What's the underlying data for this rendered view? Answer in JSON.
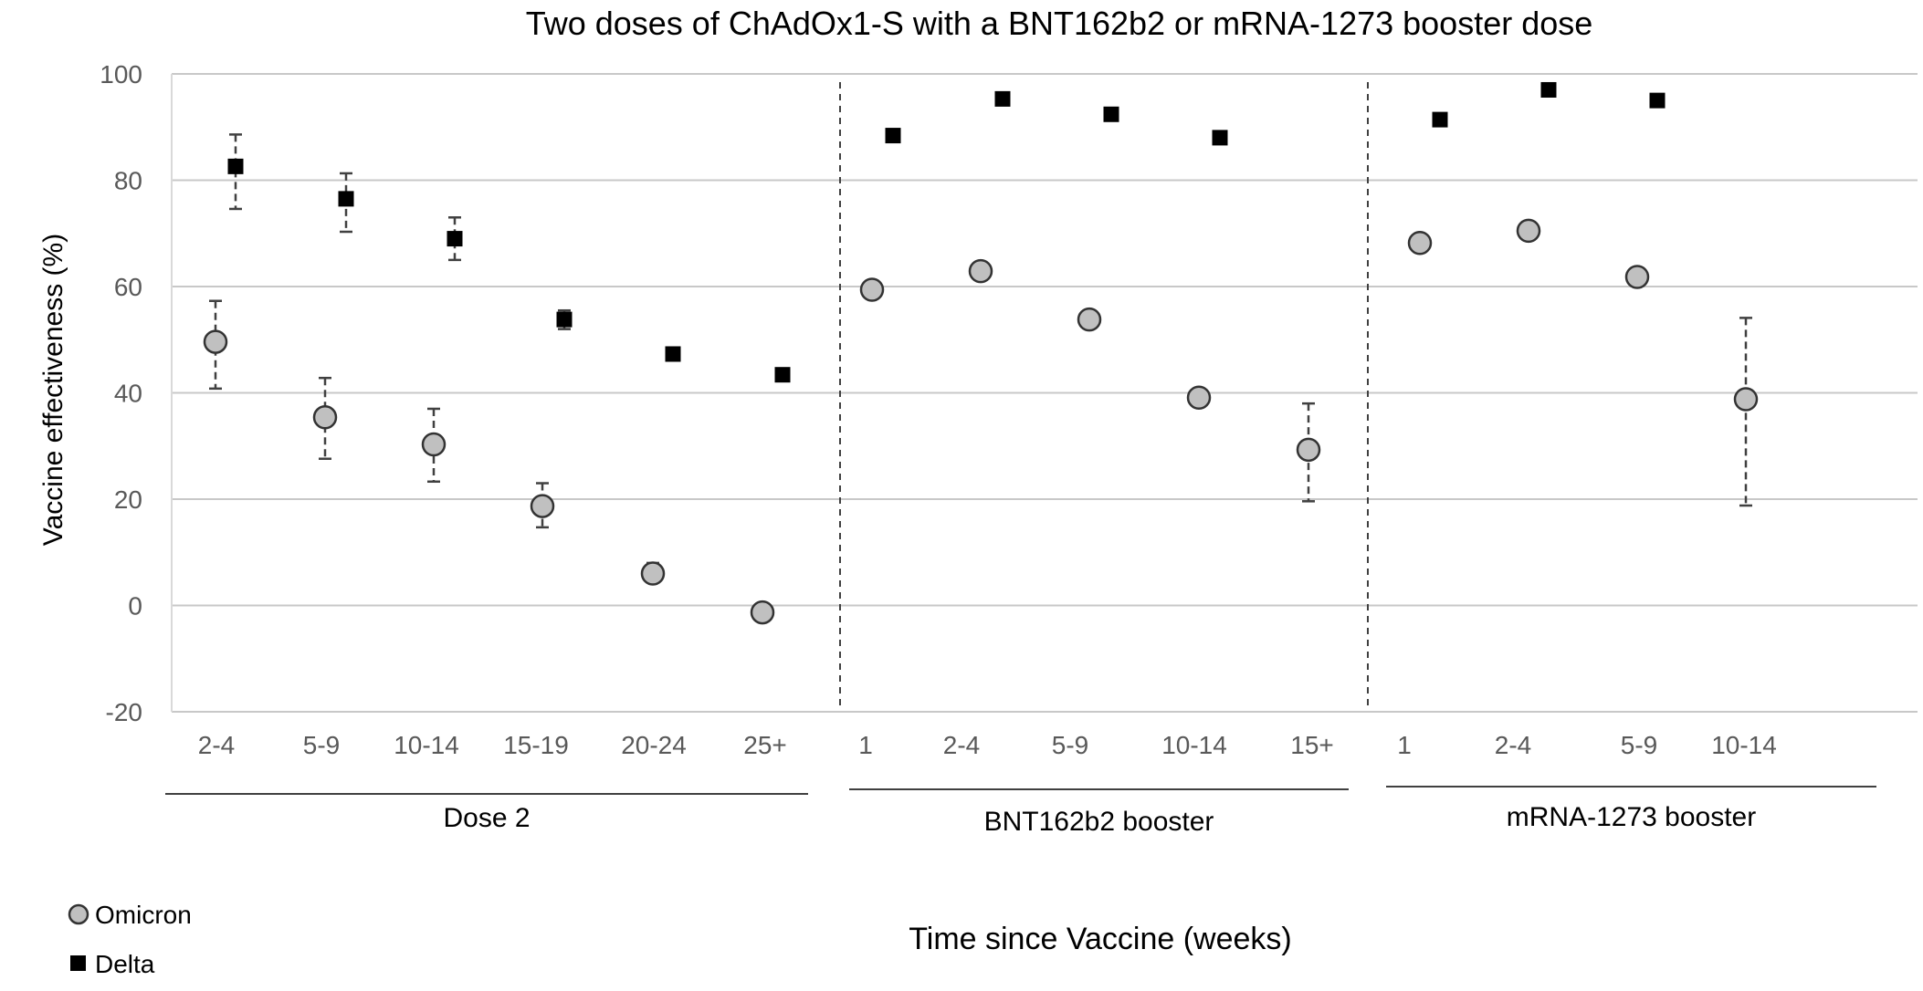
{
  "chart_data": {
    "type": "scatter",
    "title": "Two doses of ChAdOx1-S with a BNT162b2 or mRNA-1273 booster dose",
    "xlabel": "Time since Vaccine (weeks)",
    "ylabel": "Vaccine effectiveness (%)",
    "ylim": [
      -20,
      100
    ],
    "yticks": [
      -20,
      0,
      20,
      40,
      60,
      80,
      100
    ],
    "grid": true,
    "legend_position": "bottom-left",
    "groups": [
      {
        "name": "Dose 2",
        "categories": [
          "2-4",
          "5-9",
          "10-14",
          "15-19",
          "20-24",
          "25+"
        ]
      },
      {
        "name": "BNT162b2 booster",
        "categories": [
          "1",
          "2-4",
          "5-9",
          "10-14",
          "15+"
        ]
      },
      {
        "name": "mRNA-1273 booster",
        "categories": [
          "1",
          "2-4",
          "5-9",
          "10-14"
        ]
      }
    ],
    "series": [
      {
        "name": "Omicron",
        "marker": "circle",
        "color": "#c0c0c0",
        "points": [
          {
            "group": 0,
            "category": "2-4",
            "y": 49.6,
            "lo": 40.8,
            "hi": 57.3
          },
          {
            "group": 0,
            "category": "5-9",
            "y": 35.4,
            "lo": 27.6,
            "hi": 42.8
          },
          {
            "group": 0,
            "category": "10-14",
            "y": 30.3,
            "lo": 23.3,
            "hi": 37.0
          },
          {
            "group": 0,
            "category": "15-19",
            "y": 18.7,
            "lo": 14.7,
            "hi": 23.0
          },
          {
            "group": 0,
            "category": "20-24",
            "y": 6.0,
            "lo": 5.0,
            "hi": 8.0
          },
          {
            "group": 0,
            "category": "25+",
            "y": -1.3
          },
          {
            "group": 1,
            "category": "1",
            "y": 59.4
          },
          {
            "group": 1,
            "category": "2-4",
            "y": 62.9
          },
          {
            "group": 1,
            "category": "5-9",
            "y": 53.8
          },
          {
            "group": 1,
            "category": "10-14",
            "y": 39.1
          },
          {
            "group": 1,
            "category": "15+",
            "y": 29.3,
            "lo": 19.6,
            "hi": 38.0
          },
          {
            "group": 2,
            "category": "1",
            "y": 68.2
          },
          {
            "group": 2,
            "category": "2-4",
            "y": 70.5
          },
          {
            "group": 2,
            "category": "5-9",
            "y": 61.8
          },
          {
            "group": 2,
            "category": "10-14",
            "y": 38.8,
            "lo": 18.8,
            "hi": 54.1
          }
        ]
      },
      {
        "name": "Delta",
        "marker": "square",
        "color": "#000000",
        "points": [
          {
            "group": 0,
            "category": "2-4",
            "y": 82.6,
            "lo": 74.6,
            "hi": 88.6
          },
          {
            "group": 0,
            "category": "5-9",
            "y": 76.5,
            "lo": 70.3,
            "hi": 81.3
          },
          {
            "group": 0,
            "category": "10-14",
            "y": 69.0,
            "lo": 65.0,
            "hi": 73.0
          },
          {
            "group": 0,
            "category": "15-19",
            "y": 53.8,
            "lo": 52.0,
            "hi": 55.5
          },
          {
            "group": 0,
            "category": "20-24",
            "y": 47.3
          },
          {
            "group": 0,
            "category": "25+",
            "y": 43.4
          },
          {
            "group": 1,
            "category": "1",
            "y": 88.4
          },
          {
            "group": 1,
            "category": "2-4",
            "y": 95.3
          },
          {
            "group": 1,
            "category": "5-9",
            "y": 92.4
          },
          {
            "group": 1,
            "category": "10-14",
            "y": 88.0
          },
          {
            "group": 2,
            "category": "1",
            "y": 91.4
          },
          {
            "group": 2,
            "category": "2-4",
            "y": 97.0
          },
          {
            "group": 2,
            "category": "5-9",
            "y": 95.0
          }
        ]
      }
    ]
  }
}
